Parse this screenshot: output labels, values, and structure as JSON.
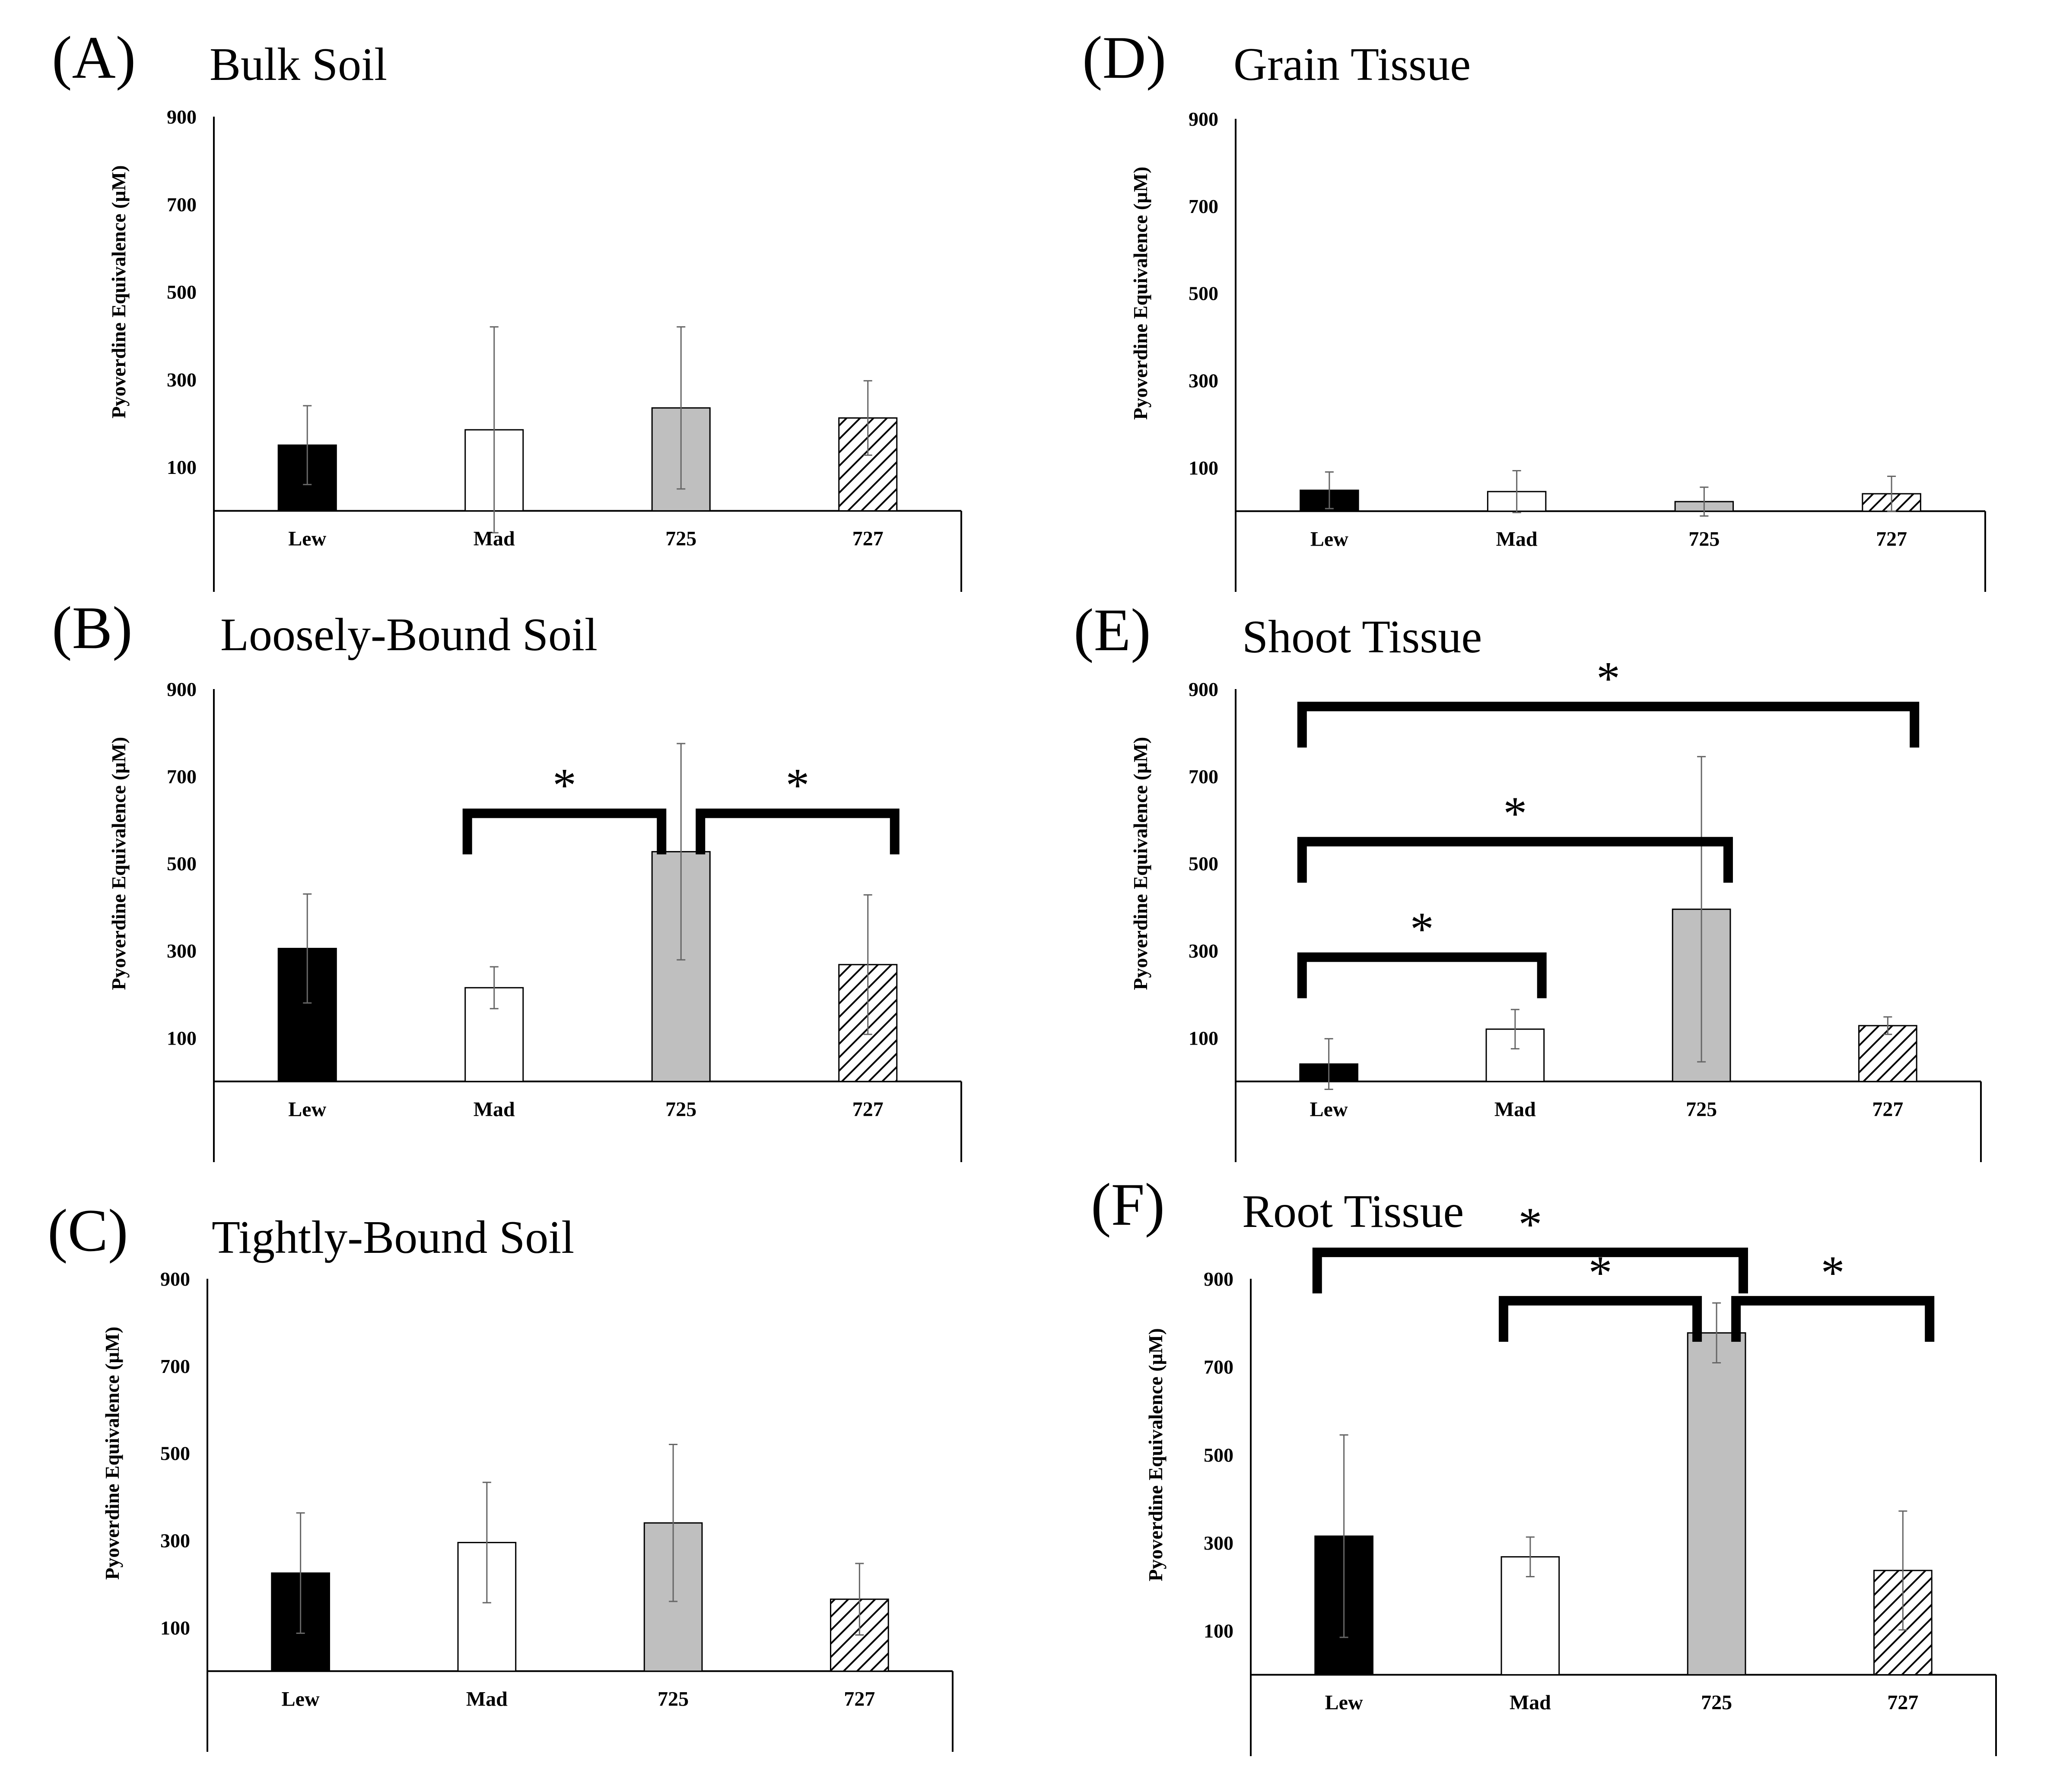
{
  "figure": {
    "y_axis_label": "Pyoverdine Equivalence (µM)",
    "significance_symbol": "*"
  },
  "colors": {
    "Lew": "#000000",
    "Mad": "#ffffff",
    "725": "#bfbfbf",
    "727": "hatched"
  },
  "chart_data": [
    {
      "type": "bar",
      "panel_letter": "(A)",
      "title": "Bulk Soil",
      "categories": [
        "Lew",
        "Mad",
        "725",
        "727"
      ],
      "values": [
        150,
        185,
        235,
        212
      ],
      "errors": [
        90,
        235,
        185,
        85
      ],
      "ylabel": "Pyoverdine Equivalence (µM)",
      "yticks": [
        100,
        300,
        500,
        700,
        900
      ],
      "ylim": [
        -185,
        900
      ],
      "brackets": []
    },
    {
      "type": "bar",
      "panel_letter": "(B)",
      "title": "Loosely-Bound Soil",
      "categories": [
        "Lew",
        "Mad",
        "725",
        "727"
      ],
      "values": [
        305,
        215,
        527,
        268
      ],
      "errors": [
        125,
        48,
        248,
        160
      ],
      "ylabel": "Pyoverdine Equivalence (µM)",
      "yticks": [
        100,
        300,
        500,
        700,
        900
      ],
      "ylim": [
        -185,
        900
      ],
      "brackets": [
        {
          "from": "Mad",
          "to": "725",
          "level": 615,
          "label": "*"
        },
        {
          "from": "725",
          "to": "727",
          "level": 615,
          "label": "*"
        }
      ]
    },
    {
      "type": "bar",
      "panel_letter": "(C)",
      "title": "Tightly-Bound Soil",
      "categories": [
        "Lew",
        "Mad",
        "725",
        "727"
      ],
      "values": [
        225,
        295,
        340,
        165
      ],
      "errors": [
        138,
        138,
        180,
        82
      ],
      "ylabel": "Pyoverdine Equivalence (µM)",
      "yticks": [
        100,
        300,
        500,
        700,
        900
      ],
      "ylim": [
        -185,
        900
      ],
      "brackets": []
    },
    {
      "type": "bar",
      "panel_letter": "(D)",
      "title": "Grain Tissue",
      "categories": [
        "Lew",
        "Mad",
        "725",
        "727"
      ],
      "values": [
        48,
        45,
        22,
        40
      ],
      "errors": [
        42,
        48,
        33,
        40
      ],
      "ylabel": "Pyoverdine Equivalence (µM)",
      "yticks": [
        100,
        300,
        500,
        700,
        900
      ],
      "ylim": [
        -185,
        900
      ],
      "brackets": []
    },
    {
      "type": "bar",
      "panel_letter": "(E)",
      "title": "Shoot Tissue",
      "categories": [
        "Lew",
        "Mad",
        "725",
        "727"
      ],
      "values": [
        40,
        120,
        395,
        128
      ],
      "errors": [
        58,
        45,
        350,
        20
      ],
      "ylabel": "Pyoverdine Equivalence (µM)",
      "yticks": [
        100,
        300,
        500,
        700,
        900
      ],
      "ylim": [
        -185,
        900
      ],
      "brackets": [
        {
          "from": "Lew",
          "to": "727",
          "level": 860,
          "label": "*"
        },
        {
          "from": "Lew",
          "to": "725",
          "level": 550,
          "label": "*"
        },
        {
          "from": "Lew",
          "to": "Mad",
          "level": 285,
          "label": "*"
        }
      ]
    },
    {
      "type": "bar",
      "panel_letter": "(F)",
      "title": "Root Tissue",
      "categories": [
        "Lew",
        "Mad",
        "725",
        "727"
      ],
      "values": [
        315,
        268,
        777,
        237
      ],
      "errors": [
        230,
        45,
        68,
        135
      ],
      "ylabel": "Pyoverdine Equivalence (µM)",
      "yticks": [
        100,
        300,
        500,
        700,
        900
      ],
      "ylim": [
        -185,
        900
      ],
      "brackets": [
        {
          "from": "Lew",
          "to": "725",
          "level": 960,
          "label": "*"
        },
        {
          "from": "Mad",
          "to": "725",
          "level": 850,
          "label": "*"
        },
        {
          "from": "725",
          "to": "727",
          "level": 850,
          "label": "*"
        }
      ]
    }
  ]
}
